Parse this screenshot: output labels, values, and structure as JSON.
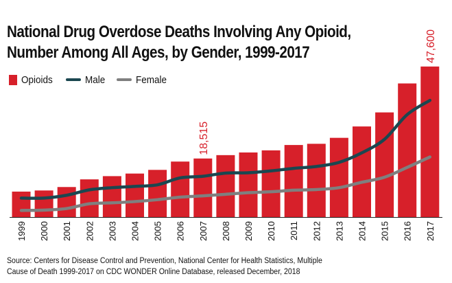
{
  "title_lines": [
    "National Drug Overdose Deaths Involving Any Opioid,",
    "Number Among All Ages, by Gender, 1999-2017"
  ],
  "legend": {
    "opioids": "Opioids",
    "male": "Male",
    "female": "Female"
  },
  "colors": {
    "bar": "#d7202a",
    "male": "#1b4750",
    "female": "#7f7f7f",
    "annotation": "#d7202a"
  },
  "source_lines": [
    "Source: Centers for Disease Control and Prevention, National Center for Health Statistics, Multiple",
    "Cause of Death 1999-2017 on CDC WONDER Online Database, released December, 2018"
  ],
  "chart_data": {
    "type": "bar",
    "title": "National Drug Overdose Deaths Involving Any Opioid, Number Among All Ages, by Gender, 1999-2017",
    "xlabel": "",
    "ylabel": "",
    "ylim": [
      0,
      48000
    ],
    "categories": [
      "1999",
      "2000",
      "2001",
      "2002",
      "2003",
      "2004",
      "2005",
      "2006",
      "2007",
      "2008",
      "2009",
      "2010",
      "2011",
      "2012",
      "2013",
      "2014",
      "2015",
      "2016",
      "2017"
    ],
    "series": [
      {
        "name": "Opioids",
        "type": "bar",
        "values": [
          8050,
          8407,
          9496,
          11920,
          12940,
          13756,
          14918,
          17545,
          18515,
          19582,
          20422,
          21089,
          22784,
          23166,
          25052,
          28647,
          33091,
          42249,
          47600
        ]
      },
      {
        "name": "Male",
        "type": "line",
        "values": [
          5990,
          6000,
          6900,
          8600,
          9300,
          9700,
          10200,
          12400,
          12900,
          13900,
          14000,
          14600,
          15400,
          16000,
          17300,
          20300,
          24600,
          32400,
          36900
        ]
      },
      {
        "name": "Female",
        "type": "line",
        "values": [
          2100,
          2200,
          2700,
          4200,
          4500,
          4900,
          5500,
          6300,
          6700,
          7200,
          7700,
          8000,
          8500,
          8700,
          9300,
          11000,
          12600,
          15700,
          19000
        ]
      }
    ],
    "annotations": [
      {
        "category": "2007",
        "text": "18,515"
      },
      {
        "category": "2017",
        "text": "47,600"
      }
    ]
  }
}
